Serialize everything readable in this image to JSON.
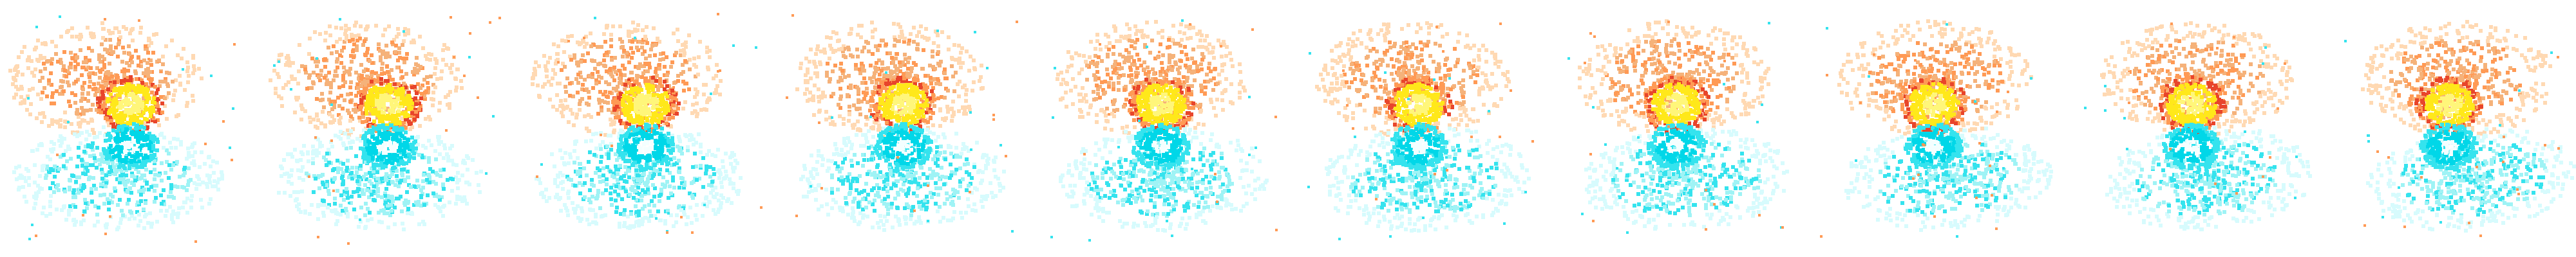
{
  "sprite_sheet": {
    "frame_count": 10,
    "palette": {
      "background": "#ffffff",
      "warm_outer": "#f5b27a",
      "warm_pale": "#ffd9b3",
      "warm_mid": "#ff9a55",
      "warm_hot": "#e8452b",
      "warm_core": "#ffe81a",
      "warm_core_bright": "#fff67a",
      "cool_outer": "#9ff3f5",
      "cool_pale": "#d7fbfd",
      "cool_mid": "#35e3ee",
      "cool_core": "#00d7e8",
      "cool_white": "#f4ffff"
    },
    "frames": [
      {
        "index": 1,
        "warm_drift": 0.0,
        "cool_drift": 0.0,
        "rotation_deg": 0
      },
      {
        "index": 2,
        "warm_drift": 0.05,
        "cool_drift": 0.04,
        "rotation_deg": 8
      },
      {
        "index": 3,
        "warm_drift": 0.1,
        "cool_drift": 0.08,
        "rotation_deg": 16
      },
      {
        "index": 4,
        "warm_drift": 0.15,
        "cool_drift": 0.12,
        "rotation_deg": 24
      },
      {
        "index": 5,
        "warm_drift": 0.2,
        "cool_drift": 0.16,
        "rotation_deg": 32
      },
      {
        "index": 6,
        "warm_drift": 0.25,
        "cool_drift": 0.2,
        "rotation_deg": 40
      },
      {
        "index": 7,
        "warm_drift": 0.3,
        "cool_drift": 0.24,
        "rotation_deg": 48
      },
      {
        "index": 8,
        "warm_drift": 0.35,
        "cool_drift": 0.28,
        "rotation_deg": 56
      },
      {
        "index": 9,
        "warm_drift": 0.4,
        "cool_drift": 0.32,
        "rotation_deg": 64
      },
      {
        "index": 10,
        "warm_drift": 0.45,
        "cool_drift": 0.36,
        "rotation_deg": 72
      }
    ]
  }
}
